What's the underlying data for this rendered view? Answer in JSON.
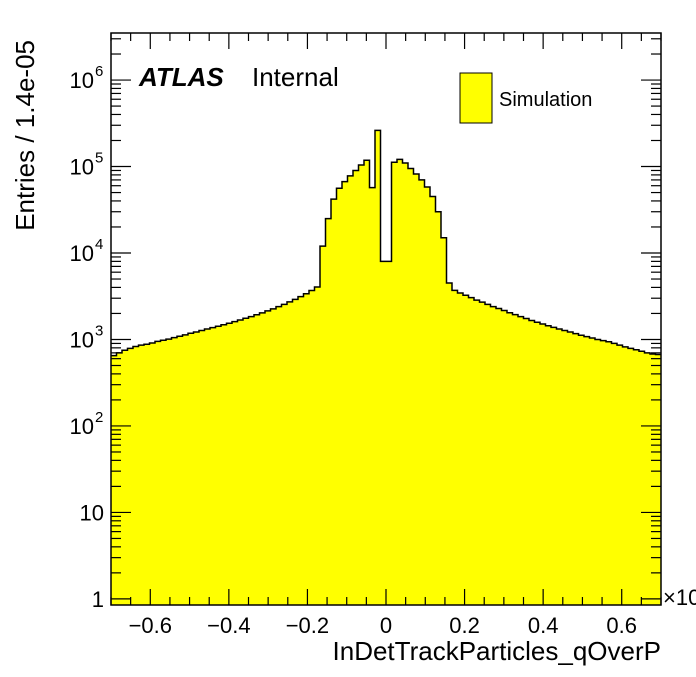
{
  "chart_data": {
    "type": "bar",
    "style": "histogram",
    "fill_color": "#ffff00",
    "line_color": "#000000",
    "xlabel": "InDetTrackParticles_qOverP",
    "ylabel": "Entries / 1.4e-05",
    "x_multiplier": "×10",
    "xlim": [
      -0.7,
      0.7
    ],
    "ylim": [
      0.85,
      3500000
    ],
    "yscale": "log",
    "x_ticks": [
      {
        "v": -0.6,
        "label": "−0.6"
      },
      {
        "v": -0.4,
        "label": "−0.4"
      },
      {
        "v": -0.2,
        "label": "−0.2"
      },
      {
        "v": 0,
        "label": "0"
      },
      {
        "v": 0.2,
        "label": "0.2"
      },
      {
        "v": 0.4,
        "label": "0.4"
      },
      {
        "v": 0.6,
        "label": "0.6"
      }
    ],
    "y_ticks": [
      {
        "v": 1,
        "base": "1",
        "exp": ""
      },
      {
        "v": 10,
        "base": "10",
        "exp": ""
      },
      {
        "v": 100,
        "base": "10",
        "exp": "2"
      },
      {
        "v": 1000,
        "base": "10",
        "exp": "3"
      },
      {
        "v": 10000,
        "base": "10",
        "exp": "4"
      },
      {
        "v": 100000,
        "base": "10",
        "exp": "5"
      },
      {
        "v": 1000000,
        "base": "10",
        "exp": "6"
      }
    ],
    "label_atlas": "ATLAS",
    "label_status": "Internal",
    "legend": [
      {
        "name": "Simulation",
        "color": "#ffff00"
      }
    ],
    "bin_width": 0.014,
    "bin_start": -0.7,
    "values": [
      650,
      700,
      750,
      790,
      830,
      860,
      880,
      910,
      950,
      980,
      1010,
      1050,
      1090,
      1130,
      1180,
      1220,
      1270,
      1320,
      1370,
      1420,
      1480,
      1540,
      1610,
      1680,
      1760,
      1840,
      1930,
      2030,
      2140,
      2260,
      2400,
      2550,
      2720,
      2910,
      3130,
      3380,
      3680,
      4050,
      12000,
      25000,
      42000,
      56000,
      67000,
      78000,
      90000,
      104000,
      118000,
      57000,
      262000,
      8000,
      8000,
      112000,
      121000,
      110000,
      95000,
      82000,
      70000,
      58000,
      45000,
      30000,
      15000,
      4500,
      3700,
      3450,
      3250,
      3050,
      2850,
      2700,
      2550,
      2400,
      2280,
      2160,
      2040,
      1940,
      1840,
      1750,
      1660,
      1580,
      1510,
      1440,
      1380,
      1320,
      1270,
      1220,
      1170,
      1120,
      1080,
      1040,
      1000,
      970,
      940,
      900,
      860,
      820,
      790,
      760,
      730,
      700,
      680,
      670
    ]
  }
}
